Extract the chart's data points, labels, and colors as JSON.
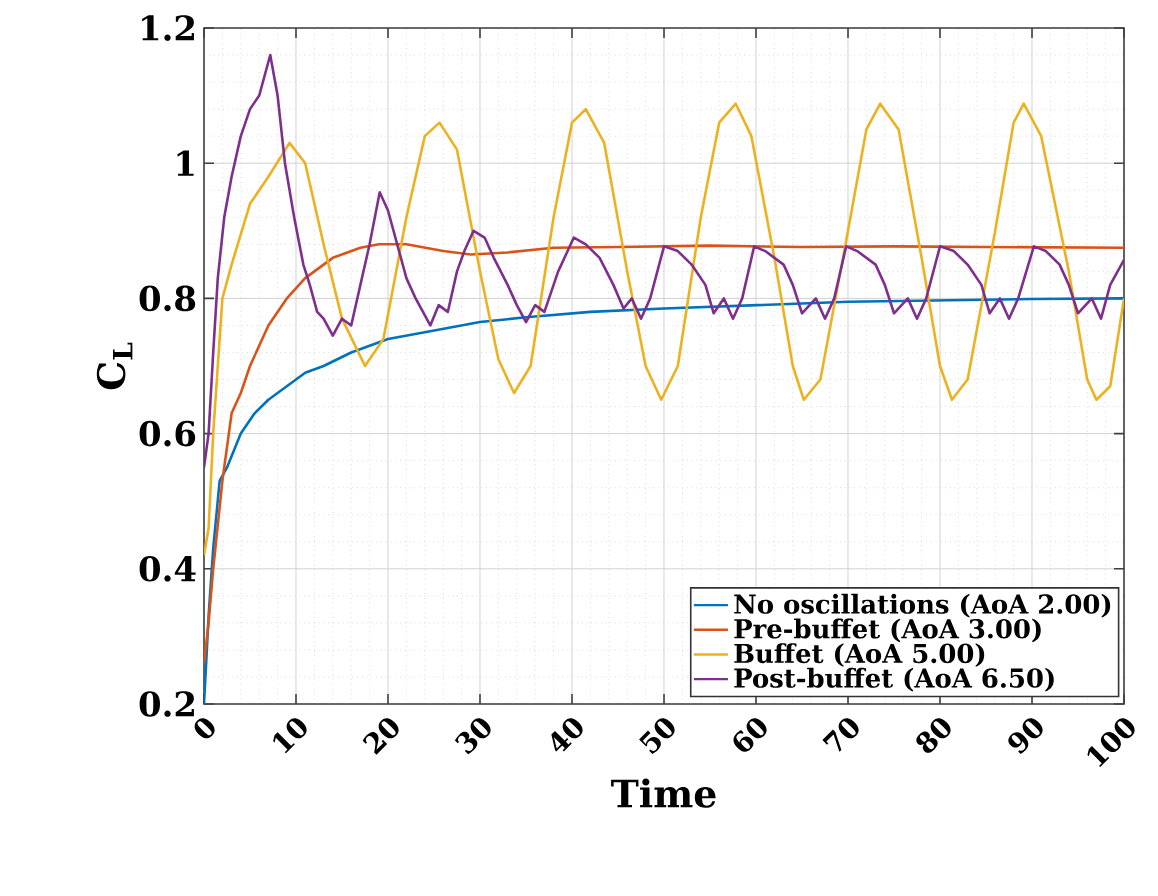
{
  "chart_data": {
    "type": "line",
    "xlabel": "Time",
    "ylabel": "C$_{L}$",
    "xlim": [
      0,
      100
    ],
    "ylim": [
      0.2,
      1.2
    ],
    "xticks": [
      0,
      10,
      20,
      30,
      40,
      50,
      60,
      70,
      80,
      90,
      100
    ],
    "yticks": [
      0.2,
      0.4,
      0.6,
      0.8,
      1,
      1.2
    ],
    "grid": true,
    "legend": "bottom right",
    "marker": "none",
    "line_style": "solid",
    "series": [
      {
        "name": "No oscillations (AoA 2.00)",
        "color": "#0072bd",
        "x": [
          0,
          0.5,
          1,
          1.7,
          2.5,
          4,
          5.5,
          7,
          9,
          11,
          13,
          16,
          20,
          24,
          30,
          35,
          42,
          50,
          60,
          70,
          80,
          90,
          100
        ],
        "values": [
          0.2,
          0.33,
          0.43,
          0.53,
          0.55,
          0.6,
          0.63,
          0.65,
          0.67,
          0.69,
          0.7,
          0.72,
          0.74,
          0.75,
          0.765,
          0.772,
          0.78,
          0.785,
          0.79,
          0.795,
          0.797,
          0.799,
          0.8
        ]
      },
      {
        "name": "Pre-buffet (AoA 3.00)",
        "color": "#d95319",
        "x": [
          0,
          0.5,
          1,
          2,
          3,
          4,
          5,
          7,
          9,
          11,
          14,
          17,
          19,
          22,
          26,
          29,
          33,
          38,
          45,
          55,
          65,
          75,
          85,
          100
        ],
        "values": [
          0.26,
          0.32,
          0.4,
          0.53,
          0.63,
          0.66,
          0.7,
          0.76,
          0.8,
          0.83,
          0.86,
          0.875,
          0.88,
          0.88,
          0.87,
          0.865,
          0.868,
          0.875,
          0.876,
          0.878,
          0.876,
          0.877,
          0.876,
          0.875
        ]
      },
      {
        "name": "Buffet (AoA 5.00)",
        "color": "#edb120",
        "x": [
          0,
          0.5,
          1,
          2,
          3,
          5,
          7,
          9.3,
          11,
          13,
          15,
          17.5,
          19.5,
          22,
          24,
          25.6,
          27.5,
          30,
          32,
          33.7,
          35.5,
          38,
          40,
          41.5,
          43.5,
          46,
          48,
          49.7,
          51.5,
          54,
          56,
          57.8,
          59.5,
          62,
          64,
          65.2,
          67,
          70,
          72,
          73.5,
          75.5,
          78,
          80,
          81.3,
          83,
          86,
          88,
          89.1,
          91,
          94,
          96,
          97,
          98.5,
          100
        ],
        "values": [
          0.42,
          0.46,
          0.6,
          0.8,
          0.85,
          0.94,
          0.98,
          1.03,
          1.0,
          0.88,
          0.77,
          0.7,
          0.74,
          0.92,
          1.04,
          1.06,
          1.02,
          0.84,
          0.71,
          0.66,
          0.7,
          0.92,
          1.06,
          1.08,
          1.03,
          0.84,
          0.7,
          0.65,
          0.7,
          0.92,
          1.06,
          1.088,
          1.04,
          0.86,
          0.7,
          0.65,
          0.68,
          0.9,
          1.05,
          1.088,
          1.05,
          0.86,
          0.7,
          0.65,
          0.68,
          0.9,
          1.06,
          1.088,
          1.04,
          0.84,
          0.68,
          0.65,
          0.67,
          0.8
        ]
      },
      {
        "name": "Post-buffet (AoA 6.50)",
        "color": "#7e2f8e",
        "x": [
          0,
          0.5,
          1,
          1.5,
          2.2,
          3,
          4,
          5,
          6,
          7.2,
          8,
          8.8,
          9.8,
          10.8,
          11.5,
          12.3,
          13,
          14,
          15,
          16,
          17,
          18,
          19.1,
          20,
          21,
          22,
          23,
          24.6,
          25.5,
          26.5,
          27.5,
          28.3,
          29.3,
          30.5,
          31.5,
          33,
          34,
          35,
          36,
          37,
          38.5,
          40.2,
          41.5,
          43,
          44.5,
          45.6,
          46.5,
          47.5,
          48.5,
          50,
          51.5,
          53,
          54.5,
          55.4,
          56.5,
          57.5,
          58.5,
          59.8,
          61,
          63,
          64,
          65,
          66.5,
          67.5,
          68.5,
          69.8,
          71,
          73,
          74,
          75,
          76.5,
          77.5,
          78.5,
          80,
          81.5,
          83,
          84.5,
          85.4,
          86.5,
          87.5,
          88.5,
          90.2,
          91.5,
          93,
          94,
          95,
          96.5,
          97.5,
          98.5,
          100
        ],
        "values": [
          0.55,
          0.6,
          0.72,
          0.83,
          0.92,
          0.98,
          1.04,
          1.08,
          1.1,
          1.16,
          1.1,
          1.0,
          0.92,
          0.85,
          0.82,
          0.78,
          0.77,
          0.745,
          0.77,
          0.76,
          0.82,
          0.88,
          0.957,
          0.93,
          0.88,
          0.83,
          0.8,
          0.76,
          0.79,
          0.78,
          0.84,
          0.87,
          0.9,
          0.89,
          0.86,
          0.82,
          0.79,
          0.765,
          0.79,
          0.78,
          0.84,
          0.89,
          0.88,
          0.86,
          0.82,
          0.785,
          0.8,
          0.77,
          0.8,
          0.877,
          0.87,
          0.85,
          0.82,
          0.778,
          0.8,
          0.77,
          0.8,
          0.877,
          0.87,
          0.85,
          0.82,
          0.778,
          0.8,
          0.77,
          0.8,
          0.877,
          0.87,
          0.85,
          0.82,
          0.778,
          0.8,
          0.77,
          0.8,
          0.877,
          0.87,
          0.85,
          0.82,
          0.778,
          0.8,
          0.77,
          0.8,
          0.877,
          0.87,
          0.85,
          0.82,
          0.778,
          0.8,
          0.77,
          0.82,
          0.857
        ]
      }
    ]
  }
}
